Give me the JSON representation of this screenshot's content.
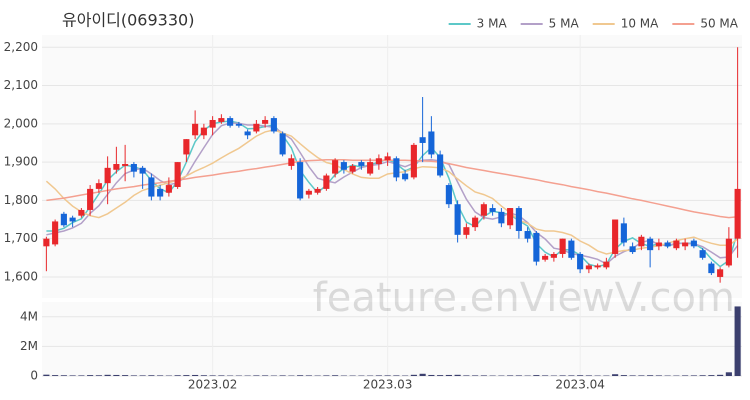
{
  "chart_data": {
    "type": "candlestick",
    "title": "유아이디(069330)",
    "watermark": "feature.enViewV.com",
    "categories": [
      null,
      null,
      null,
      null,
      null,
      null,
      null,
      null,
      null,
      null,
      null,
      null,
      null,
      null,
      null,
      null,
      null,
      null,
      null,
      "2023.02",
      null,
      null,
      null,
      null,
      null,
      null,
      null,
      null,
      null,
      null,
      null,
      null,
      null,
      null,
      null,
      null,
      null,
      null,
      null,
      "2023.03",
      null,
      null,
      null,
      null,
      null,
      null,
      null,
      null,
      null,
      null,
      null,
      null,
      null,
      null,
      null,
      null,
      null,
      null,
      null,
      null,
      null,
      "2023.04",
      null,
      null,
      null,
      null,
      null,
      null,
      null,
      null,
      null,
      null,
      null,
      null,
      null,
      null,
      null,
      null,
      null,
      null
    ],
    "open": [
      1680,
      1685,
      1765,
      1755,
      1760,
      1775,
      1830,
      1845,
      1880,
      1890,
      1895,
      1885,
      1860,
      1830,
      1820,
      1835,
      1920,
      1970,
      1970,
      1990,
      2005,
      2015,
      2000,
      1980,
      1980,
      2000,
      2015,
      1975,
      1890,
      1900,
      1815,
      1820,
      1830,
      1870,
      1900,
      1875,
      1900,
      1870,
      1895,
      1905,
      1910,
      1870,
      1860,
      1965,
      1980,
      1920,
      1840,
      1790,
      1710,
      1730,
      1760,
      1780,
      1770,
      1735,
      1780,
      1720,
      1715,
      1645,
      1650,
      1660,
      1695,
      1660,
      1620,
      1625,
      1625,
      1660,
      1740,
      1680,
      1680,
      1700,
      1680,
      1690,
      1675,
      1680,
      1695,
      1670,
      1635,
      1600,
      1630,
      1700
    ],
    "high": [
      1705,
      1750,
      1770,
      1760,
      1780,
      1840,
      1855,
      1915,
      1940,
      1945,
      1900,
      1890,
      1870,
      1840,
      1860,
      1900,
      1960,
      2035,
      2000,
      2020,
      2025,
      2020,
      2005,
      1985,
      2010,
      2020,
      2020,
      1980,
      1920,
      1910,
      1830,
      1835,
      1870,
      1910,
      1905,
      1895,
      1905,
      1910,
      1920,
      1925,
      1915,
      1880,
      1950,
      2070,
      2020,
      1930,
      1845,
      1800,
      1740,
      1760,
      1795,
      1790,
      1780,
      1780,
      1785,
      1730,
      1720,
      1660,
      1665,
      1700,
      1700,
      1665,
      1635,
      1635,
      1650,
      1750,
      1755,
      1690,
      1710,
      1705,
      1700,
      1695,
      1700,
      1700,
      1700,
      1675,
      1640,
      1625,
      1730,
      2200
    ],
    "low": [
      1615,
      1680,
      1730,
      1730,
      1755,
      1760,
      1820,
      1790,
      1870,
      1850,
      1860,
      1830,
      1800,
      1800,
      1810,
      1830,
      1900,
      1960,
      1960,
      1970,
      2000,
      1990,
      1990,
      1960,
      1975,
      1990,
      1975,
      1915,
      1880,
      1800,
      1805,
      1815,
      1825,
      1860,
      1870,
      1870,
      1880,
      1865,
      1880,
      1890,
      1850,
      1850,
      1855,
      1900,
      1910,
      1860,
      1780,
      1690,
      1700,
      1720,
      1750,
      1760,
      1730,
      1725,
      1700,
      1690,
      1630,
      1640,
      1640,
      1650,
      1645,
      1610,
      1610,
      1620,
      1620,
      1650,
      1680,
      1660,
      1670,
      1625,
      1670,
      1675,
      1670,
      1670,
      1675,
      1645,
      1605,
      1585,
      1625,
      1650
    ],
    "close": [
      1700,
      1745,
      1735,
      1745,
      1775,
      1830,
      1845,
      1885,
      1895,
      1895,
      1875,
      1870,
      1810,
      1810,
      1840,
      1900,
      1960,
      2000,
      1990,
      2010,
      2015,
      1995,
      1995,
      1970,
      2000,
      2010,
      1980,
      1920,
      1910,
      1805,
      1825,
      1830,
      1865,
      1905,
      1880,
      1890,
      1890,
      1900,
      1910,
      1915,
      1860,
      1855,
      1945,
      1950,
      1920,
      1865,
      1790,
      1710,
      1730,
      1755,
      1790,
      1770,
      1740,
      1780,
      1720,
      1700,
      1640,
      1655,
      1660,
      1700,
      1650,
      1620,
      1630,
      1630,
      1640,
      1750,
      1690,
      1665,
      1705,
      1670,
      1690,
      1680,
      1695,
      1690,
      1680,
      1650,
      1610,
      1620,
      1700,
      1830
    ],
    "up_color": "#e8272b",
    "down_color": "#1565d8",
    "ylim": [
      1545,
      2232
    ],
    "yticks": [
      {
        "value": 1600,
        "label": "1,600"
      },
      {
        "value": 1700,
        "label": "1,700"
      },
      {
        "value": 1800,
        "label": "1,800"
      },
      {
        "value": 1900,
        "label": "1,900"
      },
      {
        "value": 2000,
        "label": "2,000"
      },
      {
        "value": 2100,
        "label": "2,100"
      },
      {
        "value": 2200,
        "label": "2,200"
      }
    ],
    "grid": true,
    "legend": "top-right",
    "series": [
      {
        "name": "3 MA",
        "color": "#5cc8c8",
        "values": [
          1720,
          1720,
          1727,
          1742,
          1752,
          1783,
          1817,
          1853,
          1875,
          1892,
          1888,
          1880,
          1852,
          1830,
          1820,
          1850,
          1900,
          1953,
          1983,
          2000,
          2005,
          2007,
          2002,
          1987,
          1988,
          1993,
          1997,
          1970,
          1937,
          1878,
          1847,
          1820,
          1840,
          1867,
          1883,
          1892,
          1887,
          1893,
          1900,
          1908,
          1895,
          1877,
          1887,
          1917,
          1938,
          1912,
          1858,
          1788,
          1743,
          1732,
          1758,
          1772,
          1767,
          1763,
          1747,
          1733,
          1687,
          1665,
          1652,
          1672,
          1670,
          1657,
          1633,
          1627,
          1633,
          1673,
          1693,
          1702,
          1687,
          1680,
          1688,
          1680,
          1688,
          1688,
          1688,
          1673,
          1647,
          1627,
          1643,
          1717
        ]
      },
      {
        "name": "5 MA",
        "color": "#b3a0c8",
        "values": [
          1710,
          1715,
          1720,
          1728,
          1740,
          1766,
          1786,
          1816,
          1846,
          1870,
          1879,
          1884,
          1869,
          1852,
          1841,
          1846,
          1864,
          1902,
          1938,
          1972,
          1995,
          2002,
          2001,
          1997,
          1997,
          1994,
          1991,
          1976,
          1960,
          1925,
          1888,
          1858,
          1851,
          1846,
          1861,
          1874,
          1886,
          1891,
          1894,
          1901,
          1895,
          1888,
          1897,
          1905,
          1906,
          1903,
          1894,
          1848,
          1803,
          1770,
          1755,
          1751,
          1757,
          1767,
          1760,
          1742,
          1716,
          1699,
          1675,
          1671,
          1661,
          1657,
          1652,
          1646,
          1634,
          1654,
          1666,
          1675,
          1690,
          1696,
          1684,
          1682,
          1688,
          1687,
          1687,
          1679,
          1665,
          1650,
          1652,
          1682
        ]
      },
      {
        "name": "10 MA",
        "color": "#f0c890",
        "values": [
          1850,
          1830,
          1805,
          1785,
          1770,
          1760,
          1755,
          1765,
          1780,
          1795,
          1813,
          1826,
          1833,
          1840,
          1846,
          1853,
          1864,
          1876,
          1886,
          1897,
          1911,
          1924,
          1936,
          1952,
          1968,
          1979,
          1984,
          1976,
          1968,
          1948,
          1929,
          1912,
          1899,
          1893,
          1881,
          1869,
          1860,
          1858,
          1858,
          1869,
          1872,
          1875,
          1883,
          1888,
          1887,
          1885,
          1875,
          1856,
          1838,
          1822,
          1815,
          1805,
          1785,
          1768,
          1748,
          1740,
          1725,
          1720,
          1720,
          1716,
          1709,
          1694,
          1683,
          1668,
          1660,
          1665,
          1669,
          1670,
          1675,
          1678,
          1682,
          1688,
          1695,
          1700,
          1704,
          1695,
          1688,
          1683,
          1683,
          1699
        ]
      },
      {
        "name": "50 MA",
        "color": "#f4a090",
        "values": [
          1800,
          1803,
          1806,
          1810,
          1814,
          1818,
          1822,
          1826,
          1830,
          1833,
          1836,
          1840,
          1843,
          1846,
          1850,
          1853,
          1856,
          1860,
          1863,
          1866,
          1870,
          1873,
          1876,
          1880,
          1883,
          1887,
          1890,
          1894,
          1898,
          1902,
          1904,
          1905,
          1906,
          1906,
          1906,
          1905,
          1905,
          1905,
          1905,
          1905,
          1905,
          1905,
          1904,
          1903,
          1902,
          1900,
          1896,
          1891,
          1886,
          1882,
          1878,
          1874,
          1870,
          1866,
          1862,
          1858,
          1854,
          1849,
          1845,
          1841,
          1836,
          1832,
          1828,
          1823,
          1819,
          1814,
          1809,
          1804,
          1800,
          1795,
          1790,
          1785,
          1780,
          1775,
          1770,
          1766,
          1762,
          1758,
          1755,
          1757
        ]
      }
    ],
    "volume": {
      "color": "#3b3f6e",
      "ylim": [
        0,
        5000000
      ],
      "yticks": [
        0,
        {
          "value": 2000000,
          "label": "2M"
        },
        {
          "value": 4000000,
          "label": "4M"
        }
      ],
      "values": [
        90000,
        60000,
        50000,
        40000,
        40000,
        60000,
        50000,
        80000,
        70000,
        60000,
        40000,
        40000,
        50000,
        40000,
        30000,
        50000,
        60000,
        70000,
        50000,
        40000,
        40000,
        30000,
        30000,
        30000,
        40000,
        40000,
        30000,
        40000,
        30000,
        50000,
        40000,
        30000,
        40000,
        50000,
        30000,
        30000,
        30000,
        30000,
        40000,
        40000,
        40000,
        30000,
        80000,
        150000,
        70000,
        60000,
        70000,
        80000,
        40000,
        40000,
        40000,
        30000,
        30000,
        40000,
        40000,
        30000,
        60000,
        40000,
        30000,
        40000,
        40000,
        50000,
        40000,
        30000,
        30000,
        120000,
        60000,
        40000,
        40000,
        50000,
        40000,
        30000,
        30000,
        40000,
        40000,
        50000,
        60000,
        80000,
        250000,
        4700000
      ]
    }
  }
}
